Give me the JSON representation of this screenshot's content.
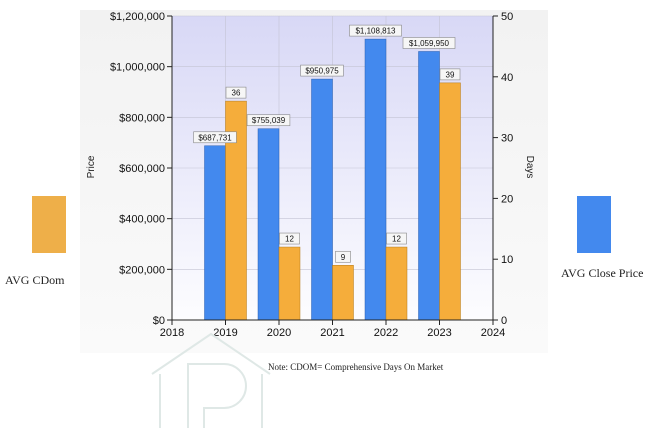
{
  "chart_data": {
    "type": "bar",
    "categories": [
      "2019",
      "2020",
      "2021",
      "2022",
      "2023"
    ],
    "x_ticks": [
      "2018",
      "2019",
      "2020",
      "2021",
      "2022",
      "2023",
      "2024"
    ],
    "series": [
      {
        "name": "AVG Close Price",
        "axis": "left",
        "color": "#4389ee",
        "values": [
          687731,
          755039,
          950975,
          1108813,
          1059950
        ],
        "labels": [
          "$687,731",
          "$755,039",
          "$950,975",
          "$1,108,813",
          "$1,059,950"
        ]
      },
      {
        "name": "AVG CDom",
        "axis": "right",
        "color": "#f5ad3b",
        "values": [
          36,
          12,
          9,
          12,
          39
        ],
        "labels": [
          "36",
          "12",
          "9",
          "12",
          "39"
        ]
      }
    ],
    "ylabel": "Price",
    "y2label": "Days",
    "ylim": [
      0,
      1200000
    ],
    "y2lim": [
      0,
      50
    ],
    "y_ticks": [
      "$1,200,000",
      "$1,000,000",
      "$800,000",
      "$600,000",
      "$400,000",
      "$200,000",
      "$0"
    ],
    "y2_ticks": [
      "50",
      "40",
      "30",
      "20",
      "10",
      "0"
    ],
    "grid": true,
    "background_gradient": [
      "#d8d8f6",
      "#fdfdff"
    ]
  },
  "legend": {
    "left": {
      "label": "AVG CDom",
      "color": "#eeaf49"
    },
    "right": {
      "label": "AVG Close Price",
      "color": "#4389ee"
    }
  },
  "note": "Note:  CDOM= Comprehensive Days On Market",
  "watermark_icon": "house-p-logo"
}
